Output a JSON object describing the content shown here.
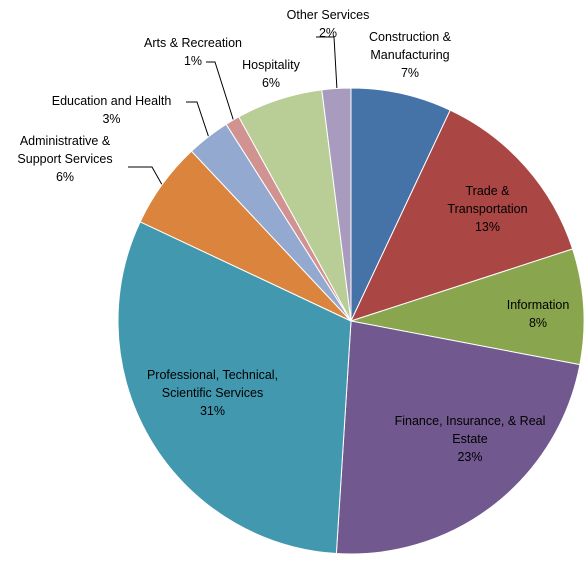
{
  "chart_data": {
    "type": "pie",
    "categories": [
      "Construction & Manufacturing",
      "Trade & Transportation",
      "Information",
      "Finance, Insurance, & Real Estate",
      "Professional, Technical, Scientific Services",
      "Administrative & Support Services",
      "Education and Health",
      "Arts & Recreation",
      "Hospitality",
      "Other Services"
    ],
    "values": [
      7,
      13,
      8,
      23,
      31,
      6,
      3,
      1,
      6,
      2
    ],
    "value_labels": [
      "7%",
      "13%",
      "8%",
      "23%",
      "31%",
      "6%",
      "3%",
      "1%",
      "6%",
      "2%"
    ],
    "colors": [
      "#4572a7",
      "#aa4643",
      "#89a54e",
      "#71588f",
      "#4198af",
      "#db843d",
      "#93a9cf",
      "#d19392",
      "#b9cd96",
      "#a99bbd"
    ]
  }
}
